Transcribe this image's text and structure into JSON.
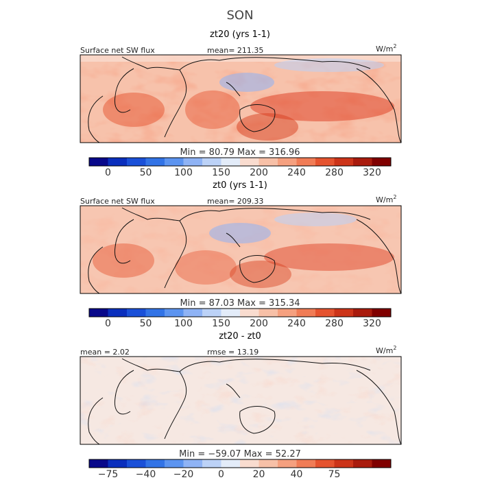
{
  "figure": {
    "season": "SON",
    "units": "W/m",
    "units_exp": "2"
  },
  "chart_data": [
    {
      "type": "heatmap",
      "title": "zt20 (yrs 1-1)",
      "variable": "Surface net SW flux",
      "stat_left": "",
      "stat_right": "mean= 211.35",
      "min_max": "Min =  80.79  Max =  316.96",
      "colorbar": {
        "ticks": [
          "0",
          "50",
          "100",
          "150",
          "200",
          "240",
          "280",
          "320"
        ],
        "colors": [
          "#08088a",
          "#0a2fbd",
          "#1a50d8",
          "#3273e6",
          "#5c94f0",
          "#8fb3f5",
          "#bcd2f7",
          "#e3ecf9",
          "#f9dccf",
          "#f7c0a7",
          "#f5a07f",
          "#f07c56",
          "#e5532f",
          "#cc3419",
          "#a91b0d",
          "#800000"
        ]
      }
    },
    {
      "type": "heatmap",
      "title": "zt0 (yrs 1-1)",
      "variable": "Surface net SW flux",
      "stat_left": "",
      "stat_right": "mean= 209.33",
      "min_max": "Min =  87.03  Max =  315.34",
      "colorbar": {
        "ticks": [
          "0",
          "50",
          "100",
          "150",
          "200",
          "240",
          "280",
          "320"
        ],
        "colors": [
          "#08088a",
          "#0a2fbd",
          "#1a50d8",
          "#3273e6",
          "#5c94f0",
          "#8fb3f5",
          "#bcd2f7",
          "#e3ecf9",
          "#f9dccf",
          "#f7c0a7",
          "#f5a07f",
          "#f07c56",
          "#e5532f",
          "#cc3419",
          "#a91b0d",
          "#800000"
        ]
      }
    },
    {
      "type": "heatmap",
      "title": "zt20 - zt0",
      "variable": "",
      "stat_left": "mean =   2.02",
      "stat_right": "rmse =  13.19",
      "min_max": "Min = −59.07  Max =  52.27",
      "colorbar": {
        "ticks": [
          "−75",
          "−40",
          "−20",
          "0",
          "20",
          "40",
          "75"
        ],
        "colors": [
          "#08088a",
          "#0a2fbd",
          "#1a50d8",
          "#3273e6",
          "#5c94f0",
          "#8fb3f5",
          "#bcd2f7",
          "#e3ecf9",
          "#f9dccf",
          "#f7c0a7",
          "#f5a07f",
          "#f07c56",
          "#e5532f",
          "#cc3419",
          "#a91b0d",
          "#800000"
        ]
      }
    }
  ]
}
